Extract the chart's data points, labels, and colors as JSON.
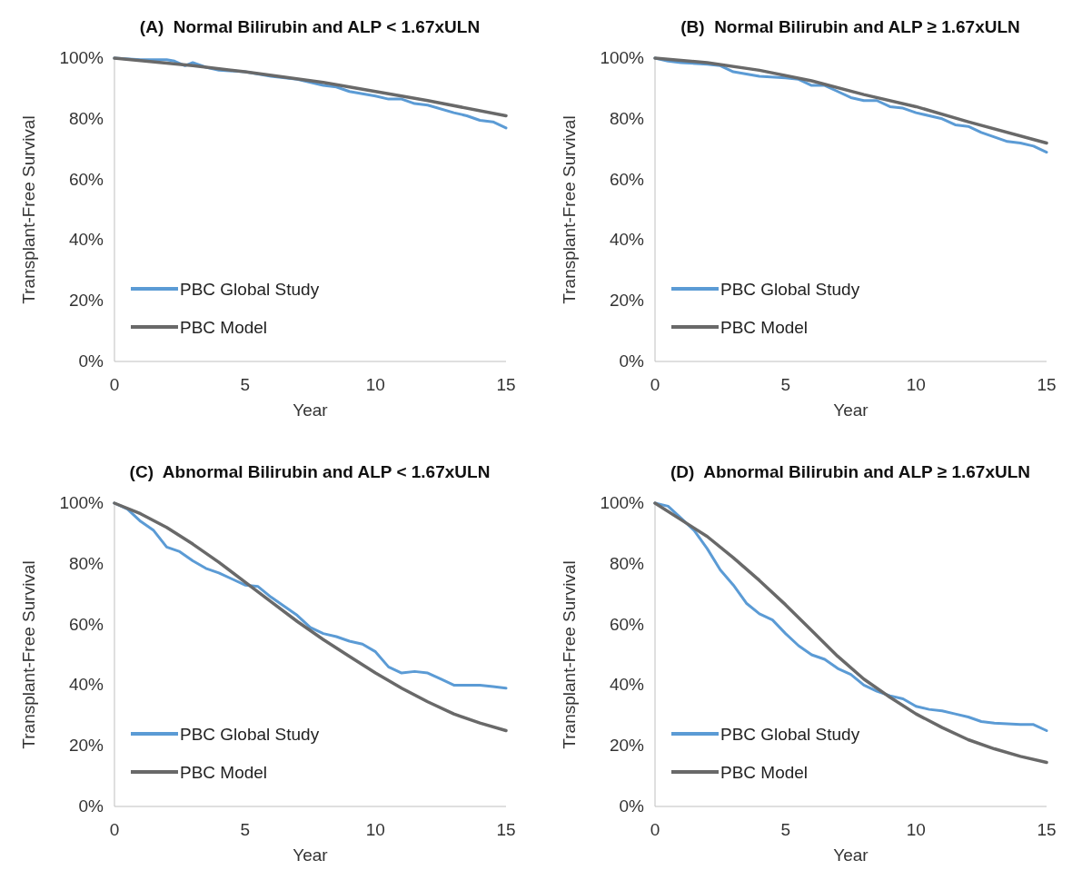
{
  "chart_data": [
    {
      "type": "line",
      "title": "(A)  Normal Bilirubin and ALP < 1.67xULN",
      "xlabel": "Year",
      "ylabel": "Transplant-Free Survival",
      "xlim": [
        0,
        15
      ],
      "xticks": [
        0,
        5,
        10,
        15
      ],
      "ylim": [
        0,
        100
      ],
      "yticks": [
        {
          "value": 0,
          "label": "0%"
        },
        {
          "value": 20,
          "label": "20%"
        },
        {
          "value": 40,
          "label": "40%"
        },
        {
          "value": 60,
          "label": "60%"
        },
        {
          "value": 80,
          "label": "80%"
        },
        {
          "value": 100,
          "label": "100%"
        }
      ],
      "grid": false,
      "legend": "bottom left",
      "series": [
        {
          "name": "PBC Global Study",
          "color": "#5b9bd5",
          "x": [
            0,
            1,
            2,
            2.3,
            2.7,
            3,
            3.5,
            4,
            5,
            6,
            7,
            8,
            8.5,
            9,
            10,
            10.5,
            11,
            11.5,
            12,
            13,
            13.5,
            14,
            14.5,
            15
          ],
          "values": [
            100,
            99.5,
            99.5,
            99,
            97.5,
            98.5,
            97,
            96,
            95.5,
            94,
            93,
            91,
            90.5,
            89,
            87.5,
            86.5,
            86.5,
            85,
            84.5,
            82,
            81,
            79.5,
            79,
            77
          ]
        },
        {
          "name": "PBC Model",
          "color": "#696969",
          "x": [
            0,
            3,
            5,
            8,
            10,
            12,
            15
          ],
          "values": [
            100,
            97.5,
            95.5,
            92,
            89,
            86,
            81
          ]
        }
      ]
    },
    {
      "type": "line",
      "title": "(B)  Normal Bilirubin and ALP ≥ 1.67xULN",
      "xlabel": "Year",
      "ylabel": "Transplant-Free Survival",
      "xlim": [
        0,
        15
      ],
      "xticks": [
        0,
        5,
        10,
        15
      ],
      "ylim": [
        0,
        100
      ],
      "yticks": [
        {
          "value": 0,
          "label": "0%"
        },
        {
          "value": 20,
          "label": "20%"
        },
        {
          "value": 40,
          "label": "40%"
        },
        {
          "value": 60,
          "label": "60%"
        },
        {
          "value": 80,
          "label": "80%"
        },
        {
          "value": 100,
          "label": "100%"
        }
      ],
      "grid": false,
      "legend": "bottom left",
      "series": [
        {
          "name": "PBC Global Study",
          "color": "#5b9bd5",
          "x": [
            0,
            0.5,
            1,
            2,
            2.5,
            3,
            4,
            5,
            5.5,
            6,
            6.5,
            7,
            7.5,
            8,
            8.5,
            9,
            9.5,
            10,
            11,
            11.5,
            12,
            12.5,
            13,
            13.5,
            14,
            14.5,
            15
          ],
          "values": [
            100,
            99,
            98.5,
            98,
            97.5,
            95.5,
            94,
            93.5,
            93,
            91,
            91,
            89,
            87,
            86,
            86,
            84,
            83.5,
            82,
            80,
            78,
            77.5,
            75.5,
            74,
            72.5,
            72,
            71,
            69
          ]
        },
        {
          "name": "PBC Model",
          "color": "#696969",
          "x": [
            0,
            2,
            4,
            6,
            8,
            10,
            12,
            15
          ],
          "values": [
            100,
            98.5,
            96,
            92.5,
            88,
            84,
            79,
            72
          ]
        }
      ]
    },
    {
      "type": "line",
      "title": "(C)  Abnormal Bilirubin and ALP < 1.67xULN",
      "xlabel": "Year",
      "ylabel": "Transplant-Free Survival",
      "xlim": [
        0,
        15
      ],
      "xticks": [
        0,
        5,
        10,
        15
      ],
      "ylim": [
        0,
        100
      ],
      "yticks": [
        {
          "value": 0,
          "label": "0%"
        },
        {
          "value": 20,
          "label": "20%"
        },
        {
          "value": 40,
          "label": "40%"
        },
        {
          "value": 60,
          "label": "60%"
        },
        {
          "value": 80,
          "label": "80%"
        },
        {
          "value": 100,
          "label": "100%"
        }
      ],
      "grid": false,
      "legend": "bottom left",
      "series": [
        {
          "name": "PBC Global Study",
          "color": "#5b9bd5",
          "x": [
            0,
            0.5,
            1,
            1.5,
            2,
            2.5,
            3,
            3.5,
            4,
            4.5,
            5,
            5.5,
            6,
            6.5,
            7,
            7.5,
            8,
            8.5,
            9,
            9.5,
            10,
            10.5,
            11,
            11.5,
            12,
            12.5,
            13,
            13.5,
            14,
            14.5,
            15
          ],
          "values": [
            100,
            98,
            94,
            91,
            85.5,
            84,
            81,
            78.5,
            77,
            75,
            73,
            72.5,
            69,
            66,
            63,
            59,
            57,
            56,
            54.5,
            53.5,
            51,
            46,
            44,
            44.5,
            44,
            42,
            40,
            40,
            40,
            39.5,
            39
          ]
        },
        {
          "name": "PBC Model",
          "color": "#696969",
          "x": [
            0,
            1,
            2,
            3,
            4,
            5,
            6,
            7,
            8,
            9,
            10,
            11,
            12,
            13,
            14,
            15
          ],
          "values": [
            100,
            96.5,
            92,
            86.5,
            80.5,
            74,
            67.5,
            61,
            55,
            49.5,
            44,
            39,
            34.5,
            30.5,
            27.5,
            25
          ]
        }
      ]
    },
    {
      "type": "line",
      "title": "(D)  Abnormal Bilirubin and ALP ≥ 1.67xULN",
      "xlabel": "Year",
      "ylabel": "Transplant-Free Survival",
      "xlim": [
        0,
        15
      ],
      "xticks": [
        0,
        5,
        10,
        15
      ],
      "ylim": [
        0,
        100
      ],
      "yticks": [
        {
          "value": 0,
          "label": "0%"
        },
        {
          "value": 20,
          "label": "20%"
        },
        {
          "value": 40,
          "label": "40%"
        },
        {
          "value": 60,
          "label": "60%"
        },
        {
          "value": 80,
          "label": "80%"
        },
        {
          "value": 100,
          "label": "100%"
        }
      ],
      "grid": false,
      "legend": "bottom left",
      "series": [
        {
          "name": "PBC Global Study",
          "color": "#5b9bd5",
          "x": [
            0,
            0.5,
            1,
            1.5,
            2,
            2.5,
            3,
            3.5,
            4,
            4.5,
            5,
            5.5,
            6,
            6.5,
            7,
            7.5,
            8,
            8.5,
            9,
            9.5,
            10,
            10.5,
            11,
            11.5,
            12,
            12.5,
            13,
            14,
            14.5,
            15
          ],
          "values": [
            100,
            99,
            95,
            91,
            85,
            78,
            73,
            67,
            63.5,
            61.5,
            57,
            53,
            50,
            48.5,
            45.5,
            43.5,
            40,
            38,
            36.5,
            35.5,
            33,
            32,
            31.5,
            30.5,
            29.5,
            28,
            27.5,
            27,
            27,
            25
          ]
        },
        {
          "name": "PBC Model",
          "color": "#696969",
          "x": [
            0,
            1,
            2,
            3,
            4,
            5,
            6,
            7,
            8,
            9,
            10,
            11,
            12,
            13,
            14,
            15
          ],
          "values": [
            100,
            94.5,
            89,
            82,
            74.5,
            66.5,
            58,
            49.5,
            42,
            36,
            30.5,
            26,
            22,
            19,
            16.5,
            14.5
          ]
        }
      ]
    }
  ]
}
